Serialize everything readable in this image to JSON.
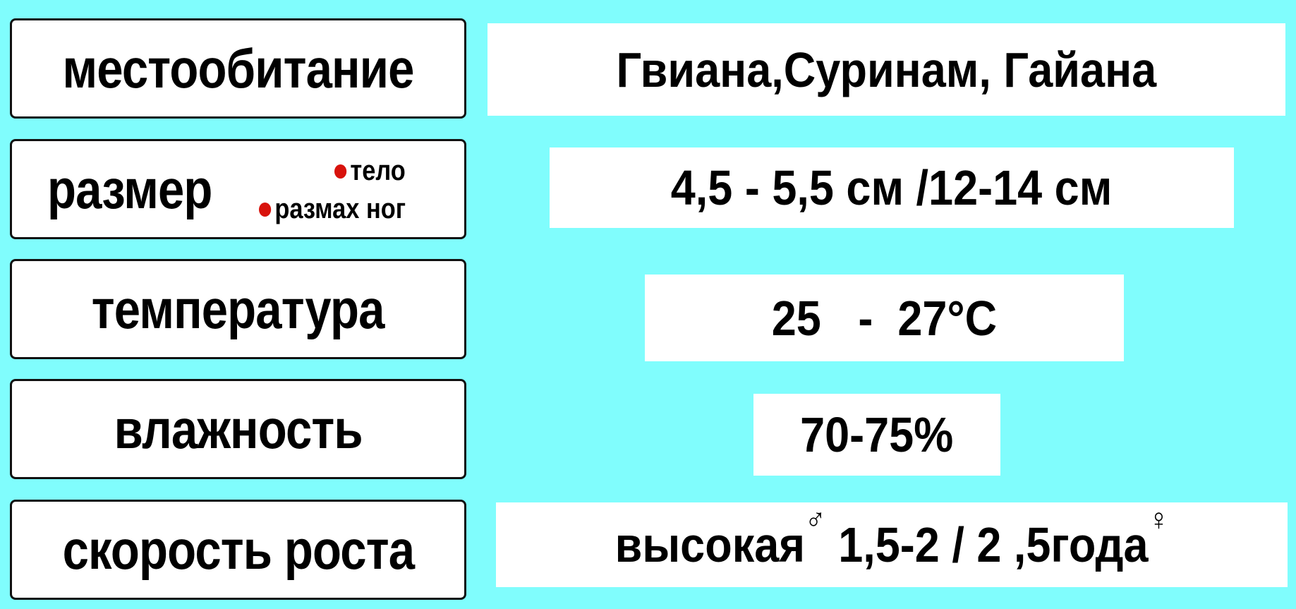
{
  "colors": {
    "background": "#80fdfd",
    "bullet": "#d8120c"
  },
  "rows": [
    {
      "label": "местообитание",
      "value": "Гвиана,Суринам, Гайана"
    },
    {
      "label": "размер",
      "sub_body": "тело",
      "sub_legs": "размах ног",
      "value": "4,5 - 5,5 см /12-14 см"
    },
    {
      "label": "температура",
      "value": "25   -  27°С"
    },
    {
      "label": "влажность",
      "value": "70-75%"
    },
    {
      "label": "скорость роста",
      "value_a": "высокая",
      "male_symbol": "♂",
      "value_b": "1,5-2 / 2 ,5",
      "value_c": "года",
      "female_symbol": "♀"
    }
  ]
}
